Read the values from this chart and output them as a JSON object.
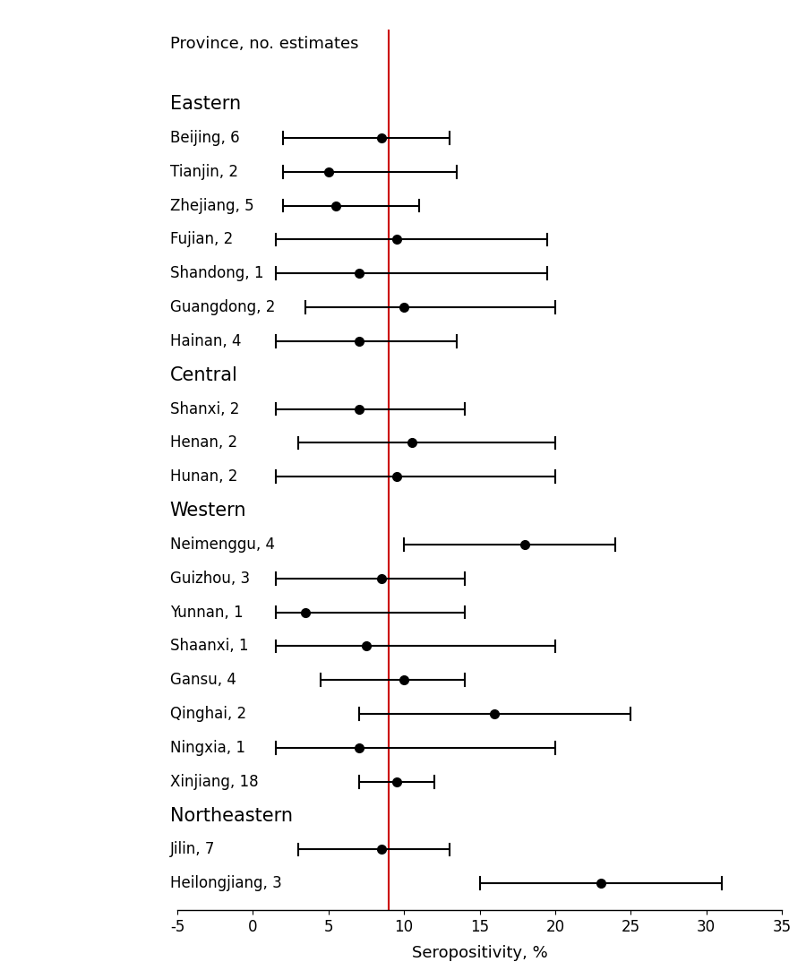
{
  "title": "Province, no. estimates",
  "xlabel": "Seropositivity, %",
  "xlim": [
    -5,
    35
  ],
  "xticks": [
    -5,
    0,
    5,
    10,
    15,
    20,
    25,
    30,
    35
  ],
  "vline": 9.0,
  "vline_color": "#cc0000",
  "background_color": "#ffffff",
  "sections": [
    {
      "header": "Eastern",
      "items": [
        {
          "label": "Beijing, 6",
          "mean": 8.5,
          "ci_lo": 2.0,
          "ci_hi": 13.0
        },
        {
          "label": "Tianjin, 2",
          "mean": 5.0,
          "ci_lo": 2.0,
          "ci_hi": 13.5
        },
        {
          "label": "Zhejiang, 5",
          "mean": 5.5,
          "ci_lo": 2.0,
          "ci_hi": 11.0
        },
        {
          "label": "Fujian, 2",
          "mean": 9.5,
          "ci_lo": 1.5,
          "ci_hi": 19.5
        },
        {
          "label": "Shandong, 1",
          "mean": 7.0,
          "ci_lo": 1.5,
          "ci_hi": 19.5
        },
        {
          "label": "Guangdong, 2",
          "mean": 10.0,
          "ci_lo": 3.5,
          "ci_hi": 20.0
        },
        {
          "label": "Hainan, 4",
          "mean": 7.0,
          "ci_lo": 1.5,
          "ci_hi": 13.5
        }
      ]
    },
    {
      "header": "Central",
      "items": [
        {
          "label": "Shanxi, 2",
          "mean": 7.0,
          "ci_lo": 1.5,
          "ci_hi": 14.0
        },
        {
          "label": "Henan, 2",
          "mean": 10.5,
          "ci_lo": 3.0,
          "ci_hi": 20.0
        },
        {
          "label": "Hunan, 2",
          "mean": 9.5,
          "ci_lo": 1.5,
          "ci_hi": 20.0
        }
      ]
    },
    {
      "header": "Western",
      "items": [
        {
          "label": "Neimenggu, 4",
          "mean": 18.0,
          "ci_lo": 10.0,
          "ci_hi": 24.0
        },
        {
          "label": "Guizhou, 3",
          "mean": 8.5,
          "ci_lo": 1.5,
          "ci_hi": 14.0
        },
        {
          "label": "Yunnan, 1",
          "mean": 3.5,
          "ci_lo": 1.5,
          "ci_hi": 14.0
        },
        {
          "label": "Shaanxi, 1",
          "mean": 7.5,
          "ci_lo": 1.5,
          "ci_hi": 20.0
        },
        {
          "label": "Gansu, 4",
          "mean": 10.0,
          "ci_lo": 4.5,
          "ci_hi": 14.0
        },
        {
          "label": "Qinghai, 2",
          "mean": 16.0,
          "ci_lo": 7.0,
          "ci_hi": 25.0
        },
        {
          "label": "Ningxia, 1",
          "mean": 7.0,
          "ci_lo": 1.5,
          "ci_hi": 20.0
        },
        {
          "label": "Xinjiang, 18",
          "mean": 9.5,
          "ci_lo": 7.0,
          "ci_hi": 12.0
        }
      ]
    },
    {
      "header": "Northeastern",
      "items": [
        {
          "label": "Jilin, 7",
          "mean": 8.5,
          "ci_lo": 3.0,
          "ci_hi": 13.0
        },
        {
          "label": "Heilongjiang, 3",
          "mean": 23.0,
          "ci_lo": 15.0,
          "ci_hi": 31.0
        }
      ]
    }
  ]
}
